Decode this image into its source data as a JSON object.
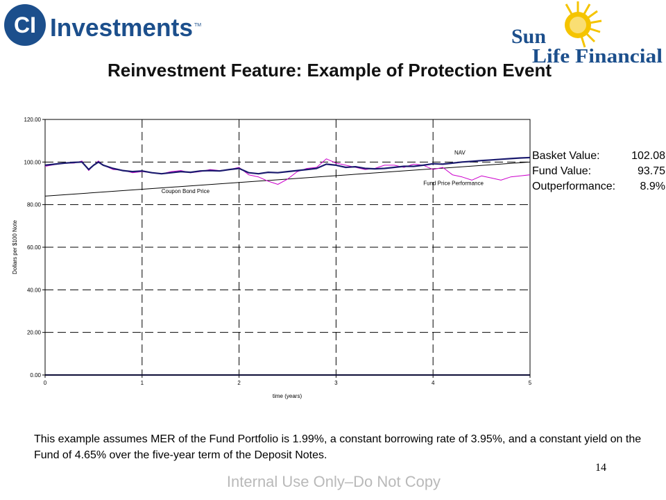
{
  "header": {
    "ci_logo_mark": "CI",
    "ci_logo_text": "Investments",
    "ci_logo_tm": "TM",
    "sunlife_line1": "Sun",
    "sunlife_line2": "Life Financial"
  },
  "title": "Reinvestment Feature: Example of Protection Event",
  "stats": [
    {
      "label": "Basket Value:",
      "value": "102.08"
    },
    {
      "label": "Fund Value:",
      "value": "93.75"
    },
    {
      "label": "Outperformance:",
      "value": "8.9%"
    }
  ],
  "note": "This example assumes MER of the Fund Portfolio is 1.99%, a constant borrowing rate of 3.95%, and a constant yield on the Fund of 4.65% over the five-year term of the Deposit Notes.",
  "page_number": "14",
  "footer": "Internal Use Only–Do Not Copy",
  "colors": {
    "nav": "#1a1a6e",
    "fund": "#cc00cc",
    "coupon": "#000000",
    "grid": "#000000"
  },
  "chart_data": {
    "type": "line",
    "xlabel": "time (years)",
    "ylabel": "Dollars per $100 Note",
    "xlim": [
      0,
      5
    ],
    "ylim": [
      0,
      120
    ],
    "xticks": [
      "0",
      "1",
      "2",
      "3",
      "4",
      "5"
    ],
    "yticks": [
      "0.00",
      "20.00",
      "40.00",
      "60.00",
      "80.00",
      "100.00",
      "120.00"
    ],
    "grid": true,
    "annotations": [
      {
        "text": "NAV",
        "x": 4.22,
        "y": 103.5
      },
      {
        "text": "Coupon Bond Price",
        "x": 1.2,
        "y": 85.5
      },
      {
        "text": "Fund Price Performance",
        "x": 3.9,
        "y": 89.2
      }
    ],
    "series": [
      {
        "name": "Coupon Bond Price",
        "x": [
          0,
          5
        ],
        "y": [
          84,
          100
        ]
      },
      {
        "name": "NAV",
        "x": [
          0,
          0.1,
          0.2,
          0.3,
          0.38,
          0.45,
          0.5,
          0.55,
          0.6,
          0.7,
          0.8,
          0.9,
          1.0,
          1.1,
          1.2,
          1.3,
          1.4,
          1.5,
          1.6,
          1.7,
          1.8,
          1.9,
          2.0,
          2.1,
          2.2,
          2.3,
          2.4,
          2.5,
          2.6,
          2.7,
          2.8,
          2.9,
          3.0,
          3.1,
          3.2,
          3.3,
          3.4,
          3.5,
          3.6,
          3.7,
          3.8,
          3.9,
          4.0,
          4.1,
          4.2,
          4.3,
          4.4,
          4.5,
          4.6,
          4.7,
          4.8,
          4.9,
          5.0
        ],
        "y": [
          98.5,
          99,
          99.5,
          99.8,
          100,
          96.5,
          98.5,
          100,
          98.5,
          97,
          96,
          95.5,
          95.8,
          95,
          94.5,
          95,
          95.5,
          95.2,
          95.8,
          96,
          95.8,
          96.5,
          97,
          95,
          94.5,
          95.2,
          95,
          95.5,
          96,
          96.5,
          97,
          99,
          98.5,
          97.5,
          97.8,
          97,
          96.8,
          97,
          97.5,
          98,
          98,
          98.5,
          99.2,
          99,
          99.5,
          100,
          100.3,
          100.7,
          101,
          101.3,
          101.6,
          101.9,
          102.1
        ]
      },
      {
        "name": "Fund Price Performance",
        "x": [
          0,
          0.1,
          0.2,
          0.3,
          0.38,
          0.45,
          0.5,
          0.55,
          0.6,
          0.7,
          0.8,
          0.9,
          1.0,
          1.1,
          1.2,
          1.3,
          1.4,
          1.5,
          1.6,
          1.7,
          1.8,
          1.9,
          2.0,
          2.1,
          2.2,
          2.3,
          2.4,
          2.5,
          2.6,
          2.7,
          2.8,
          2.9,
          3.0,
          3.1,
          3.2,
          3.3,
          3.4,
          3.5,
          3.6,
          3.7,
          3.8,
          3.9,
          4.0,
          4.1,
          4.2,
          4.3,
          4.4,
          4.5,
          4.6,
          4.7,
          4.8,
          4.9,
          5.0
        ],
        "y": [
          98,
          98.8,
          99.5,
          99.5,
          100.5,
          96,
          98.5,
          100.5,
          98.5,
          96.5,
          96.2,
          95,
          95.5,
          95,
          94.5,
          95.5,
          96,
          95,
          95.5,
          96.5,
          96,
          96.5,
          97.5,
          94,
          93,
          91,
          89.5,
          92,
          95.5,
          97,
          97.5,
          101.5,
          99.5,
          98.5,
          97.5,
          96.5,
          97,
          98.5,
          98.5,
          97.5,
          99,
          98.5,
          96.5,
          97.5,
          94,
          93,
          91.5,
          93.5,
          92.5,
          91.5,
          93,
          93.5,
          94
        ]
      }
    ]
  }
}
